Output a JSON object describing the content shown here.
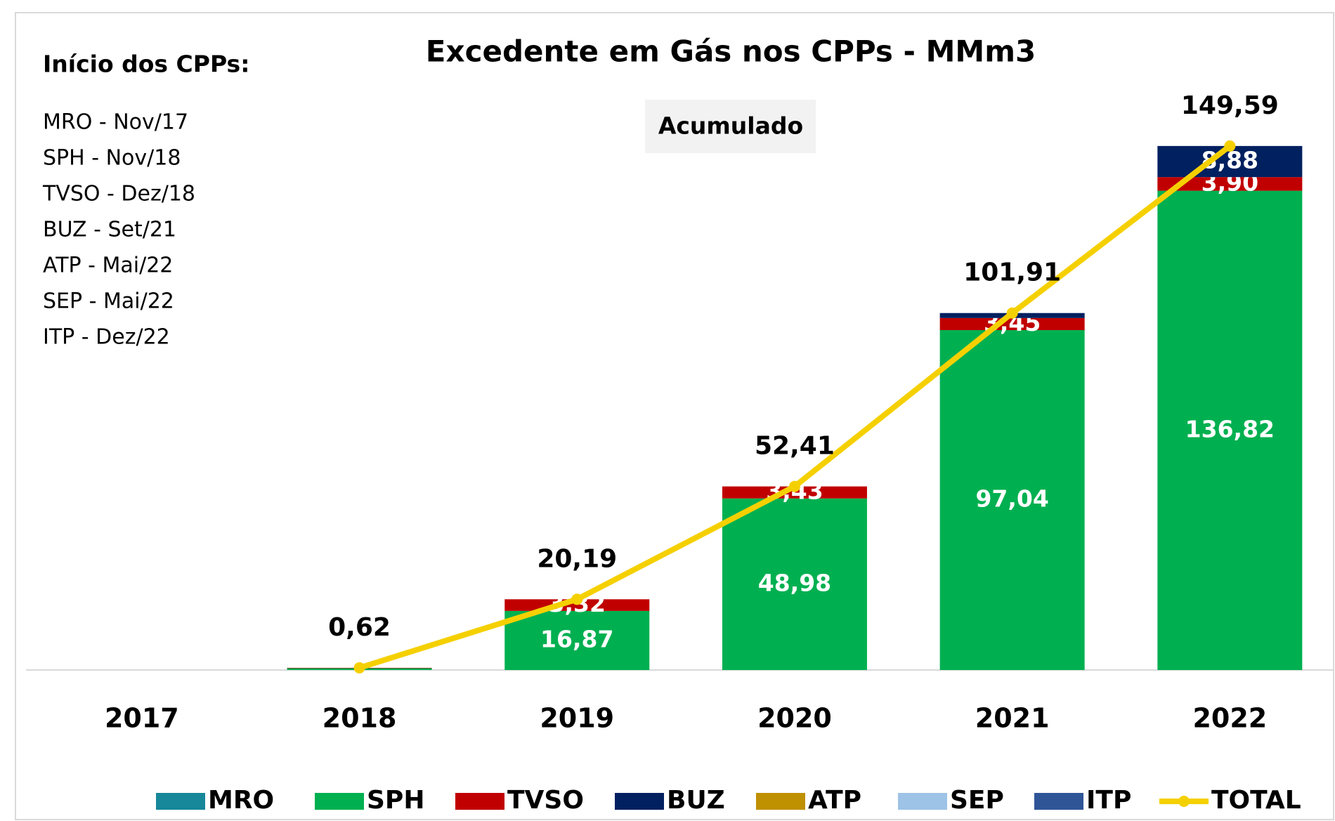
{
  "chart_data": {
    "type": "bar",
    "stacked": true,
    "title": "Excedente em Gás nos CPPs - MMm3",
    "annotations": {
      "heading": "Início dos CPPs:",
      "lines": [
        "MRO - Nov/17",
        "SPH - Nov/18",
        "TVSO - Dez/18",
        "BUZ - Set/21",
        "ATP - Mai/22",
        "SEP - Mai/22",
        "ITP - Dez/22"
      ],
      "box": "Acumulado"
    },
    "categories": [
      "2017",
      "2018",
      "2019",
      "2020",
      "2021",
      "2022"
    ],
    "ylim": [
      0,
      160
    ],
    "series": [
      {
        "name": "MRO",
        "color": "#17879a",
        "values": [
          0,
          0,
          0,
          0,
          0,
          0
        ]
      },
      {
        "name": "SPH",
        "color": "#00b050",
        "values": [
          0,
          0.5,
          16.87,
          48.98,
          97.04,
          136.82
        ],
        "value_labels": [
          null,
          null,
          "16,87",
          "48,98",
          "97,04",
          "136,82"
        ]
      },
      {
        "name": "TVSO",
        "color": "#c00000",
        "values": [
          0,
          0.12,
          3.32,
          3.43,
          3.45,
          3.9
        ],
        "value_labels": [
          null,
          null,
          "3,32",
          "3,43",
          "3,45",
          "3,90"
        ]
      },
      {
        "name": "BUZ",
        "color": "#002060",
        "values": [
          0,
          0,
          0,
          0,
          1.42,
          8.88
        ],
        "value_labels": [
          null,
          null,
          null,
          null,
          null,
          "8,88"
        ]
      },
      {
        "name": "ATP",
        "color": "#bf9000",
        "values": [
          0,
          0,
          0,
          0,
          0,
          0
        ]
      },
      {
        "name": "SEP",
        "color": "#9dc3e6",
        "values": [
          0,
          0,
          0,
          0,
          0,
          0
        ]
      },
      {
        "name": "ITP",
        "color": "#2f5597",
        "values": [
          0,
          0,
          0,
          0,
          0,
          0
        ]
      },
      {
        "name": "TOTAL",
        "type": "line",
        "color": "#f5d000",
        "values": [
          null,
          0.62,
          20.19,
          52.41,
          101.91,
          149.59
        ],
        "value_labels": [
          null,
          "0,62",
          "20,19",
          "52,41",
          "101,91",
          "149,59"
        ]
      }
    ]
  }
}
